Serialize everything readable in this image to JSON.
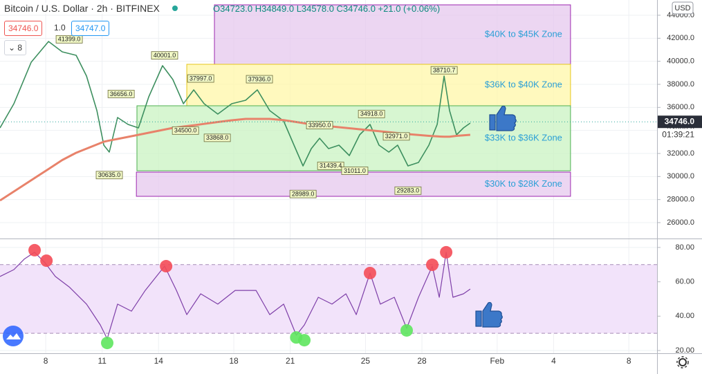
{
  "header": {
    "title": "Bitcoin / U.S. Dollar",
    "interval": "2h",
    "exchange": "BITFINEX",
    "ohlc": "O34723.0 H34849.0 L34578.0 C34746.0 +21.0 (+0.06%)",
    "bid": "34746.0",
    "size": "1.0",
    "ask": "34747.0",
    "indicators": "8"
  },
  "price_scale": {
    "currency": "USD",
    "last_price": {
      "value": 34746,
      "label": "34746.0"
    },
    "countdown": "01:39:21"
  },
  "chart_data": [
    {
      "type": "line",
      "x": [
        5.57,
        6.31,
        7.23,
        8.15,
        8.88,
        9.62,
        10.17,
        10.72,
        11.09,
        11.38,
        11.82,
        12.38,
        12.93,
        13.48,
        14.21,
        14.76,
        15.32,
        15.87,
        16.42,
        17.15,
        17.89,
        18.63,
        19.25,
        19.91,
        20.65,
        21.2,
        21.68,
        22.12,
        22.56,
        23.04,
        23.59,
        24.14,
        24.69,
        25.24,
        25.72,
        26.24,
        26.71,
        27.26,
        27.82,
        28.37,
        28.81,
        29.18,
        29.47,
        29.84,
        30.21,
        30.57
      ],
      "series": [
        {
          "color": "#3d8f5f",
          "values": [
            34220,
            36320,
            39920,
            41720,
            40820,
            40520,
            38720,
            35720,
            32720,
            32120,
            35120,
            34520,
            34220,
            36920,
            39620,
            38420,
            36320,
            37520,
            36320,
            35420,
            36320,
            36620,
            37520,
            35720,
            34820,
            32720,
            30920,
            32420,
            33320,
            32420,
            32720,
            31820,
            33620,
            34520,
            32720,
            32120,
            32720,
            30920,
            31220,
            32720,
            34520,
            38720,
            35720,
            33620,
            34220,
            34640
          ]
        },
        {
          "color": "#e8826a",
          "values": [
            27920,
            28700,
            29680,
            30650,
            31430,
            32060,
            32420,
            32780,
            33020,
            33120,
            33260,
            33440,
            33620,
            33800,
            34040,
            34220,
            34340,
            34450,
            34570,
            34730,
            34880,
            35000,
            35000,
            35000,
            34900,
            34760,
            34640,
            34520,
            34450,
            34370,
            34280,
            34190,
            34100,
            34010,
            33930,
            33850,
            33770,
            33680,
            33600,
            33530,
            33480,
            33450,
            33460,
            33530,
            33570,
            33620
          ]
        }
      ],
      "xlim": [
        5.57,
        40.5
      ],
      "ylim": [
        24620,
        45320
      ],
      "yticks": [
        {
          "value": 26000,
          "label": "26000.0"
        },
        {
          "value": 28000,
          "label": "28000.0"
        },
        {
          "value": 30000,
          "label": "30000.0"
        },
        {
          "value": 32000,
          "label": "32000.0"
        },
        {
          "value": 34000,
          "label": "34000.0"
        },
        {
          "value": 36000,
          "label": "36000.0"
        },
        {
          "value": 38000,
          "label": "38000.0"
        },
        {
          "value": 40000,
          "label": "40000.0"
        },
        {
          "value": 42000,
          "label": "42000.0"
        },
        {
          "value": 44000,
          "label": "44000.0"
        }
      ],
      "grid": true,
      "zones": [
        {
          "label": "$40K to $45K Zone",
          "x": [
            16.97,
            35.9
          ],
          "y": [
            39740,
            44900
          ],
          "fill": "#e6c8ee",
          "border": "#9c27b0"
        },
        {
          "label": "$36K to $40K Zone",
          "x": [
            15.5,
            35.9
          ],
          "y": [
            36140,
            39740
          ],
          "fill": "#fff7a8",
          "border": "#e6c619"
        },
        {
          "label": "$33K to $36K Zone",
          "x": [
            12.85,
            35.9
          ],
          "y": [
            30500,
            36140
          ],
          "fill": "#c9f3c2",
          "border": "#4caf50"
        },
        {
          "label": "$30K to $28K Zone",
          "x": [
            12.82,
            35.9
          ],
          "y": [
            28280,
            30380
          ],
          "fill": "#e6c8ee",
          "border": "#9c27b0"
        }
      ],
      "annotations": [
        {
          "x": 9.25,
          "value": 41399,
          "label": "41399.0",
          "position": "above"
        },
        {
          "x": 14.32,
          "value": 40001,
          "label": "40001.0",
          "position": "above"
        },
        {
          "x": 12.01,
          "value": 36656,
          "label": "36656.0",
          "position": "above"
        },
        {
          "x": 16.24,
          "value": 37997,
          "label": "37997.0",
          "position": "above"
        },
        {
          "x": 19.36,
          "value": 37936,
          "label": "37936.0",
          "position": "above"
        },
        {
          "x": 15.43,
          "value": 34500,
          "label": "34500.0",
          "position": "below"
        },
        {
          "x": 17.12,
          "value": 33868,
          "label": "33868.0",
          "position": "below"
        },
        {
          "x": 11.38,
          "value": 30635,
          "label": "30635.0",
          "position": "below"
        },
        {
          "x": 21.68,
          "value": 28989,
          "label": "28989.0",
          "position": "below"
        },
        {
          "x": 22.56,
          "value": 33950,
          "label": "33950.0",
          "position": "above"
        },
        {
          "x": 23.15,
          "value": 31439.4,
          "label": "31439.4",
          "position": "below"
        },
        {
          "x": 24.43,
          "value": 31011,
          "label": "31011.0",
          "position": "below"
        },
        {
          "x": 25.32,
          "value": 34918,
          "label": "34918.0",
          "position": "above"
        },
        {
          "x": 26.64,
          "value": 32971,
          "label": "32971.0",
          "position": "above"
        },
        {
          "x": 27.26,
          "value": 29283,
          "label": "29283.0",
          "position": "below"
        },
        {
          "x": 29.18,
          "value": 38710.7,
          "label": "38710.7",
          "position": "above"
        }
      ]
    },
    {
      "type": "line",
      "x": [
        5.57,
        6.31,
        6.86,
        7.41,
        7.96,
        8.51,
        9.25,
        10.17,
        10.9,
        11.27,
        11.82,
        12.56,
        13.29,
        14.32,
        14.95,
        15.5,
        16.24,
        17.15,
        18.07,
        19.18,
        19.91,
        20.65,
        21.32,
        21.75,
        22.49,
        23.22,
        23.96,
        24.51,
        25.24,
        25.79,
        26.53,
        27.19,
        27.82,
        28.55,
        28.92,
        29.29,
        29.65,
        30.21,
        30.57
      ],
      "values": [
        63.1,
        67.1,
        73.2,
        77.2,
        71.1,
        63.1,
        57.0,
        47.0,
        34.9,
        26.8,
        47.0,
        42.9,
        55.0,
        69.1,
        55.0,
        40.9,
        53.0,
        47.0,
        55.0,
        55.0,
        40.9,
        47.0,
        28.9,
        34.9,
        51.0,
        47.0,
        53.0,
        40.9,
        65.1,
        47.0,
        51.0,
        32.9,
        51.0,
        69.1,
        51.0,
        77.2,
        51.0,
        53.0,
        55.8
      ],
      "color": "#7e3fa8",
      "band": [
        30,
        70
      ],
      "band_color": "#f2e3fa",
      "markers": [
        {
          "x": 7.41,
          "value": 78.4,
          "color": "#f44b56"
        },
        {
          "x": 8.04,
          "value": 72.3,
          "color": "#f44b56"
        },
        {
          "x": 14.4,
          "value": 69.1,
          "color": "#f44b56"
        },
        {
          "x": 25.24,
          "value": 65.1,
          "color": "#f44b56"
        },
        {
          "x": 28.55,
          "value": 69.9,
          "color": "#f44b56"
        },
        {
          "x": 29.29,
          "value": 77.2,
          "color": "#f44b56"
        },
        {
          "x": 11.27,
          "value": 24.4,
          "color": "#5ee65e"
        },
        {
          "x": 21.32,
          "value": 27.6,
          "color": "#5ee65e"
        },
        {
          "x": 21.75,
          "value": 26.0,
          "color": "#5ee65e"
        },
        {
          "x": 27.19,
          "value": 31.7,
          "color": "#5ee65e"
        }
      ],
      "xlim": [
        5.57,
        40.5
      ],
      "ylim": [
        18.4,
        84.4
      ],
      "yticks": [
        {
          "value": 20,
          "label": "20.00"
        },
        {
          "value": 40,
          "label": "40.00"
        },
        {
          "value": 60,
          "label": "60.00"
        },
        {
          "value": 80,
          "label": "80.00"
        }
      ],
      "xticks": [
        8,
        11,
        14,
        18,
        21,
        25,
        28,
        {
          "value": 32,
          "label": "Feb"
        },
        {
          "value": 35,
          "label": "4"
        },
        {
          "value": 39,
          "label": "8"
        }
      ],
      "grid": true
    }
  ]
}
